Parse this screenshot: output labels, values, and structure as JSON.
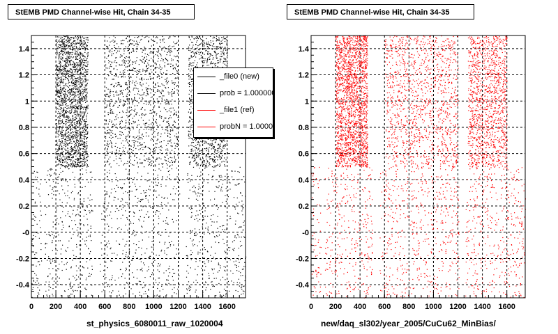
{
  "chart_data": [
    {
      "type": "scatter",
      "title": "StEMB PMD Channel-wise Hit, Chain 34-35",
      "xlabel": "st_physics_6080011_raw_1020004",
      "ylabel": "",
      "xlim": [
        0,
        1750
      ],
      "ylim": [
        -0.5,
        1.5
      ],
      "xticks": [
        "0",
        "200",
        "400",
        "600",
        "800",
        "1000",
        "1200",
        "1400",
        "1600"
      ],
      "yticks": [
        "-0.4",
        "-0.2",
        "-0",
        "0.2",
        "0.4",
        "0.6",
        "0.8",
        "1",
        "1.2",
        "1.4"
      ],
      "grid": true,
      "marker_color": "#000000",
      "regions": [
        {
          "x": [
            200,
            460
          ],
          "y": [
            0.5,
            1.5
          ],
          "density": "high"
        },
        {
          "x": [
            600,
            1200
          ],
          "y": [
            0.5,
            1.5
          ],
          "density": "medium"
        },
        {
          "x": [
            1280,
            1600
          ],
          "y": [
            0.5,
            1.5
          ],
          "density": "medium"
        },
        {
          "x": [
            0,
            1750
          ],
          "y": [
            -0.5,
            0.5
          ],
          "density": "low"
        }
      ],
      "legend": {
        "position": "top-right",
        "entries": [
          {
            "label": "_file0 (new)",
            "color": "#000000"
          },
          {
            "label": "prob = 1.000000",
            "color": "#000000"
          },
          {
            "label": "_file1 (ref)",
            "color": "#ff0000"
          },
          {
            "label": "probN = 1.000000",
            "color": "#ff0000"
          }
        ]
      }
    },
    {
      "type": "scatter",
      "title": "StEMB PMD Channel-wise Hit, Chain 34-35",
      "xlabel": "new/daq_sl302/year_2005/CuCu62_MinBias/",
      "ylabel": "",
      "xlim": [
        0,
        1750
      ],
      "ylim": [
        -0.5,
        1.5
      ],
      "xticks": [
        "0",
        "200",
        "400",
        "600",
        "800",
        "1000",
        "1200",
        "1400",
        "1600"
      ],
      "yticks": [
        "-0.4",
        "-0.2",
        "-0",
        "0.2",
        "0.4",
        "0.6",
        "0.8",
        "1",
        "1.2",
        "1.4"
      ],
      "grid": true,
      "marker_color": "#ff0000",
      "regions": [
        {
          "x": [
            200,
            460
          ],
          "y": [
            0.5,
            1.5
          ],
          "density": "high"
        },
        {
          "x": [
            600,
            1200
          ],
          "y": [
            0.5,
            1.5
          ],
          "density": "medium"
        },
        {
          "x": [
            1280,
            1600
          ],
          "y": [
            0.5,
            1.5
          ],
          "density": "medium"
        },
        {
          "x": [
            0,
            1750
          ],
          "y": [
            -0.5,
            0.5
          ],
          "density": "low"
        }
      ]
    }
  ]
}
